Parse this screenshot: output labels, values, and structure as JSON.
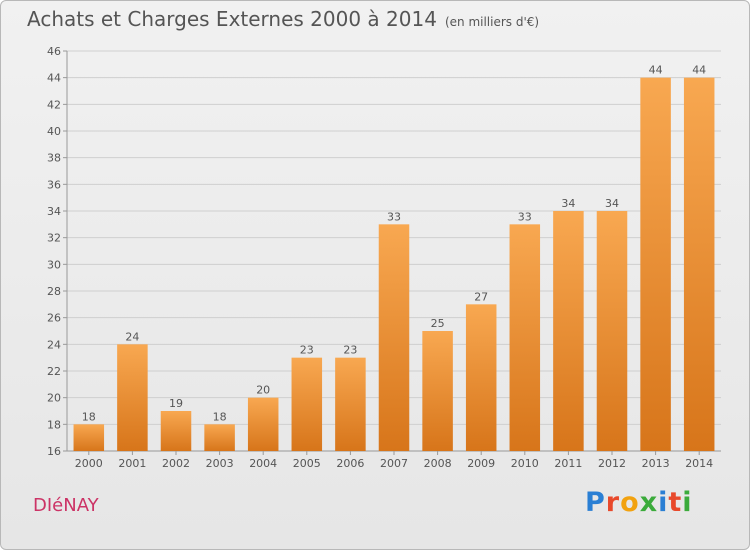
{
  "header": {
    "title": "Achats et Charges Externes 2000 à 2014",
    "subtitle": "(en milliers d'€)"
  },
  "footer": {
    "commune": "DIéNAY",
    "logo": "Proxiti",
    "logo_colors": [
      "#2a7fd4",
      "#e8492b",
      "#f2a20f",
      "#3bab3b",
      "#2a7fd4",
      "#e8492b",
      "#3bab3b"
    ]
  },
  "colors": {
    "bar_light": "#f8a851",
    "bar_dark": "#d7751a",
    "grid": "#cfcfcf",
    "axis": "#999999"
  },
  "chart_data": {
    "type": "bar",
    "title": "Achats et Charges Externes 2000 à 2014",
    "subtitle": "(en milliers d'€)",
    "categories": [
      "2000",
      "2001",
      "2002",
      "2003",
      "2004",
      "2005",
      "2006",
      "2007",
      "2008",
      "2009",
      "2010",
      "2011",
      "2012",
      "2013",
      "2014"
    ],
    "values": [
      18,
      24,
      19,
      18,
      20,
      23,
      23,
      33,
      25,
      27,
      33,
      34,
      34,
      44,
      44
    ],
    "ylim": [
      16,
      46
    ],
    "yticks": [
      16,
      18,
      20,
      22,
      24,
      26,
      28,
      30,
      32,
      34,
      36,
      38,
      40,
      42,
      44,
      46
    ],
    "grid": true,
    "data_labels": true
  }
}
